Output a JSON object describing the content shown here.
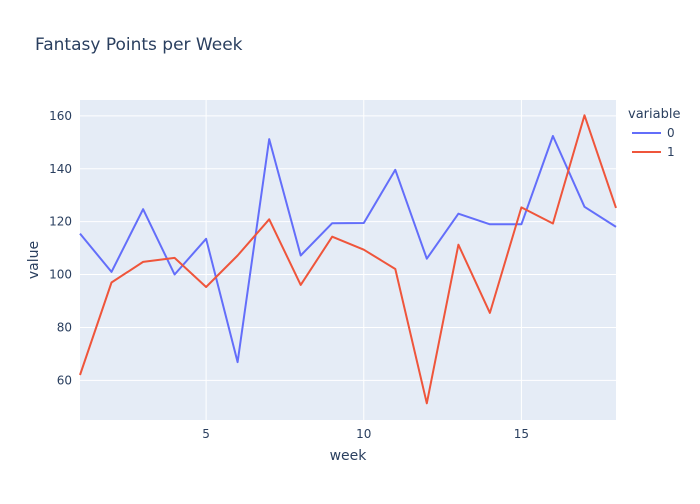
{
  "chart_data": {
    "type": "line",
    "title": "Fantasy Points per Week",
    "xlabel": "week",
    "ylabel": "value",
    "xlim": [
      1,
      18
    ],
    "ylim": [
      45,
      166
    ],
    "xticks": [
      5,
      10,
      15
    ],
    "yticks": [
      60,
      80,
      100,
      120,
      140,
      160
    ],
    "grid": true,
    "legend": {
      "title": "variable",
      "position": "top-right"
    },
    "x": [
      1,
      2,
      3,
      4,
      5,
      6,
      7,
      8,
      9,
      10,
      11,
      12,
      13,
      14,
      15,
      16,
      17,
      18
    ],
    "series": [
      {
        "name": "0",
        "color": "#636efa",
        "values": [
          115.5,
          101,
          124.7,
          100,
          113.5,
          66.9,
          151.2,
          107.2,
          119.4,
          119.5,
          139.6,
          106,
          123,
          119,
          119,
          152.4,
          125.6,
          118
        ]
      },
      {
        "name": "1",
        "color": "#ef553b",
        "values": [
          62,
          97,
          104.8,
          106.3,
          95.3,
          107.2,
          120.9,
          96.1,
          114.3,
          109.4,
          102.1,
          51.3,
          111.3,
          85.5,
          125.4,
          119.3,
          160.2,
          125.2
        ]
      }
    ]
  }
}
